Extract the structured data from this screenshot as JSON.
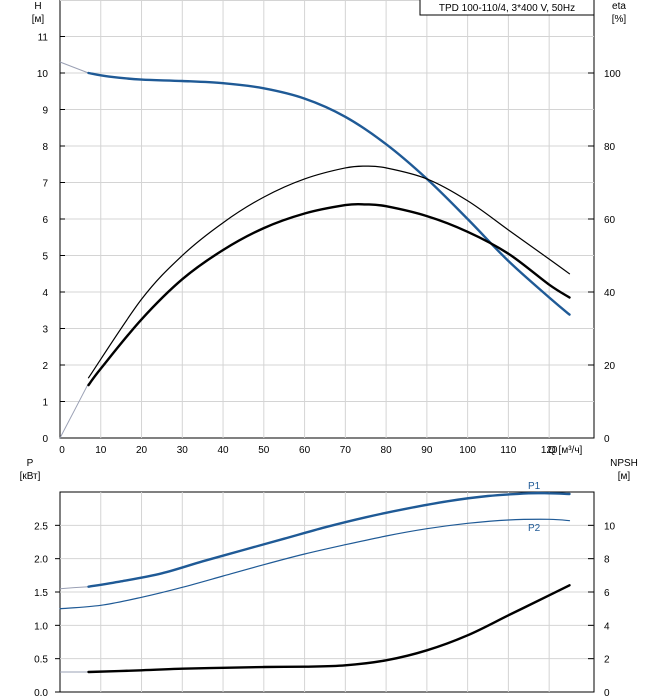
{
  "chart_data": {
    "type": "line",
    "title": "TPD 100-110/4, 3*400 V, 50Hz",
    "x": {
      "label": "Q [м³/ч]",
      "range": [
        0,
        131
      ],
      "ticks": [
        0,
        10,
        20,
        30,
        40,
        50,
        60,
        70,
        80,
        90,
        100,
        110,
        120
      ]
    },
    "upper": {
      "left_axis": {
        "label_line1": "H",
        "label_line2": "[м]",
        "range": [
          0,
          12
        ],
        "ticks": [
          0,
          1,
          2,
          3,
          4,
          5,
          6,
          7,
          8,
          9,
          10,
          11
        ]
      },
      "right_axis": {
        "label_line1": "eta",
        "label_line2": "[%]",
        "range": [
          0,
          120
        ],
        "ticks": [
          0,
          20,
          40,
          60,
          80,
          100
        ]
      },
      "series": [
        {
          "name": "H",
          "axis": "left",
          "color": "#1f5a96",
          "thin_points": [
            [
              0,
              10.3
            ],
            [
              7,
              10.0
            ]
          ],
          "points": [
            [
              7,
              10.0
            ],
            [
              12,
              9.9
            ],
            [
              20,
              9.82
            ],
            [
              30,
              9.78
            ],
            [
              40,
              9.72
            ],
            [
              50,
              9.58
            ],
            [
              60,
              9.3
            ],
            [
              70,
              8.8
            ],
            [
              80,
              8.05
            ],
            [
              90,
              7.1
            ],
            [
              100,
              6.0
            ],
            [
              110,
              4.85
            ],
            [
              120,
              3.85
            ],
            [
              125,
              3.38
            ]
          ]
        },
        {
          "name": "eta",
          "axis": "right",
          "color": "#000000",
          "thin_points": [
            [
              0,
              0
            ],
            [
              7,
              15
            ]
          ],
          "points": [
            [
              7,
              14.5
            ],
            [
              10,
              19
            ],
            [
              20,
              32.5
            ],
            [
              30,
              43.5
            ],
            [
              40,
              51.5
            ],
            [
              50,
              57.5
            ],
            [
              60,
              61.5
            ],
            [
              70,
              63.8
            ],
            [
              75,
              64
            ],
            [
              80,
              63.5
            ],
            [
              90,
              60.8
            ],
            [
              100,
              56.5
            ],
            [
              110,
              50.5
            ],
            [
              120,
              42
            ],
            [
              125,
              38.5
            ]
          ]
        },
        {
          "name": "eta-thin",
          "axis": "right",
          "color": "#000000",
          "thin": true,
          "points": [
            [
              7,
              16.5
            ],
            [
              20,
              38
            ],
            [
              30,
              50
            ],
            [
              40,
              59
            ],
            [
              50,
              66
            ],
            [
              60,
              71
            ],
            [
              70,
              74
            ],
            [
              75,
              74.5
            ],
            [
              80,
              74
            ],
            [
              90,
              71
            ],
            [
              100,
              65
            ],
            [
              110,
              57
            ],
            [
              120,
              49
            ],
            [
              125,
              45
            ]
          ]
        }
      ]
    },
    "lower": {
      "left_axis": {
        "label_line1": "P",
        "label_line2": "[кВт]",
        "range": [
          0,
          3.0
        ],
        "ticks": [
          "0.0",
          "0.5",
          "1.0",
          "1.5",
          "2.0",
          "2.5"
        ]
      },
      "right_axis": {
        "label_line1": "NPSH",
        "label_line2": "[м]",
        "range": [
          0,
          12
        ],
        "ticks": [
          0,
          2,
          4,
          6,
          8,
          10
        ]
      },
      "series": [
        {
          "name": "P1",
          "axis": "left",
          "color": "#1f5a96",
          "thin_points": [
            [
              0,
              1.55
            ],
            [
              7,
              1.58
            ]
          ],
          "points": [
            [
              7,
              1.58
            ],
            [
              15,
              1.66
            ],
            [
              25,
              1.78
            ],
            [
              35,
              1.96
            ],
            [
              45,
              2.13
            ],
            [
              55,
              2.3
            ],
            [
              65,
              2.47
            ],
            [
              75,
              2.62
            ],
            [
              85,
              2.75
            ],
            [
              95,
              2.86
            ],
            [
              105,
              2.94
            ],
            [
              115,
              2.98
            ],
            [
              120,
              2.98
            ],
            [
              125,
              2.97
            ]
          ]
        },
        {
          "name": "P2",
          "axis": "left",
          "color": "#1f5a96",
          "thin": true,
          "points": [
            [
              0,
              1.25
            ],
            [
              10,
              1.3
            ],
            [
              20,
              1.42
            ],
            [
              30,
              1.57
            ],
            [
              40,
              1.74
            ],
            [
              50,
              1.91
            ],
            [
              60,
              2.07
            ],
            [
              70,
              2.21
            ],
            [
              80,
              2.34
            ],
            [
              90,
              2.45
            ],
            [
              100,
              2.53
            ],
            [
              110,
              2.58
            ],
            [
              120,
              2.59
            ],
            [
              125,
              2.57
            ]
          ]
        },
        {
          "name": "NPSH",
          "axis": "right",
          "color": "#000000",
          "thin_points": [
            [
              0,
              1.2
            ],
            [
              7,
              1.2
            ]
          ],
          "points": [
            [
              7,
              1.2
            ],
            [
              20,
              1.3
            ],
            [
              30,
              1.4
            ],
            [
              40,
              1.45
            ],
            [
              50,
              1.5
            ],
            [
              60,
              1.52
            ],
            [
              70,
              1.6
            ],
            [
              80,
              1.9
            ],
            [
              90,
              2.5
            ],
            [
              100,
              3.4
            ],
            [
              110,
              4.6
            ],
            [
              120,
              5.8
            ],
            [
              125,
              6.4
            ]
          ]
        }
      ],
      "labels": {
        "p1": "P1",
        "p2": "P2"
      }
    }
  }
}
